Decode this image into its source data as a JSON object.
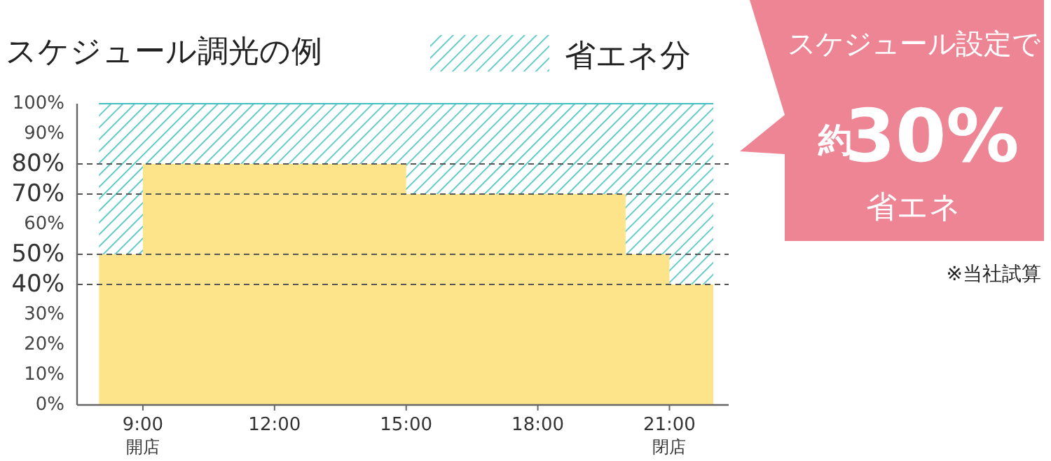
{
  "chart_data": {
    "type": "area",
    "title": "スケジュール調光の例",
    "stacked": true,
    "legend": "top",
    "series": [
      {
        "color": "#fde48a",
        "x": [
          8,
          9,
          9,
          15,
          15,
          20,
          20,
          21,
          21,
          22
        ],
        "values": [
          50,
          50,
          80,
          80,
          70,
          70,
          50,
          50,
          40,
          40
        ]
      },
      {
        "name": "省エネ分",
        "color": "#3fbfbf",
        "x": [
          8,
          9,
          9,
          15,
          15,
          20,
          20,
          21,
          21,
          22
        ],
        "values": [
          50,
          50,
          20,
          20,
          30,
          30,
          50,
          50,
          60,
          60
        ]
      }
    ],
    "xlim": [
      7.5,
      22.35
    ],
    "xticks": [
      {
        "value": 9,
        "label": "9:00\n開店"
      },
      {
        "value": 12,
        "label": "12:00"
      },
      {
        "value": 15,
        "label": "15:00"
      },
      {
        "value": 18,
        "label": "18:00"
      },
      {
        "value": 21,
        "label": "21:00\n閉店"
      }
    ],
    "ylim": [
      0,
      100
    ],
    "yticks": [
      {
        "value": 0,
        "label": "0%"
      },
      {
        "value": 10,
        "label": "10%"
      },
      {
        "value": 20,
        "label": "20%"
      },
      {
        "value": 30,
        "label": "30%"
      },
      {
        "value": 40,
        "label": "40%"
      },
      {
        "value": 50,
        "label": "50%"
      },
      {
        "value": 60,
        "label": "60%"
      },
      {
        "value": 70,
        "label": "70%"
      },
      {
        "value": 80,
        "label": "80%"
      },
      {
        "value": 90,
        "label": "90%"
      },
      {
        "value": 100,
        "label": "100%"
      }
    ],
    "ref_lines": [
      {
        "axis": "y",
        "value": 80,
        "line_style": "dashed",
        "color": "#555555"
      },
      {
        "axis": "y",
        "value": 70,
        "line_style": "dashed",
        "color": "#555555"
      },
      {
        "axis": "y",
        "value": 50,
        "line_style": "dashed",
        "color": "#555555"
      },
      {
        "axis": "y",
        "value": 40,
        "line_style": "dashed",
        "color": "#555555"
      }
    ],
    "annotations": [
      "スケジュール設定で",
      "約",
      "30%",
      "省エネ",
      "※当社試算"
    ]
  }
}
